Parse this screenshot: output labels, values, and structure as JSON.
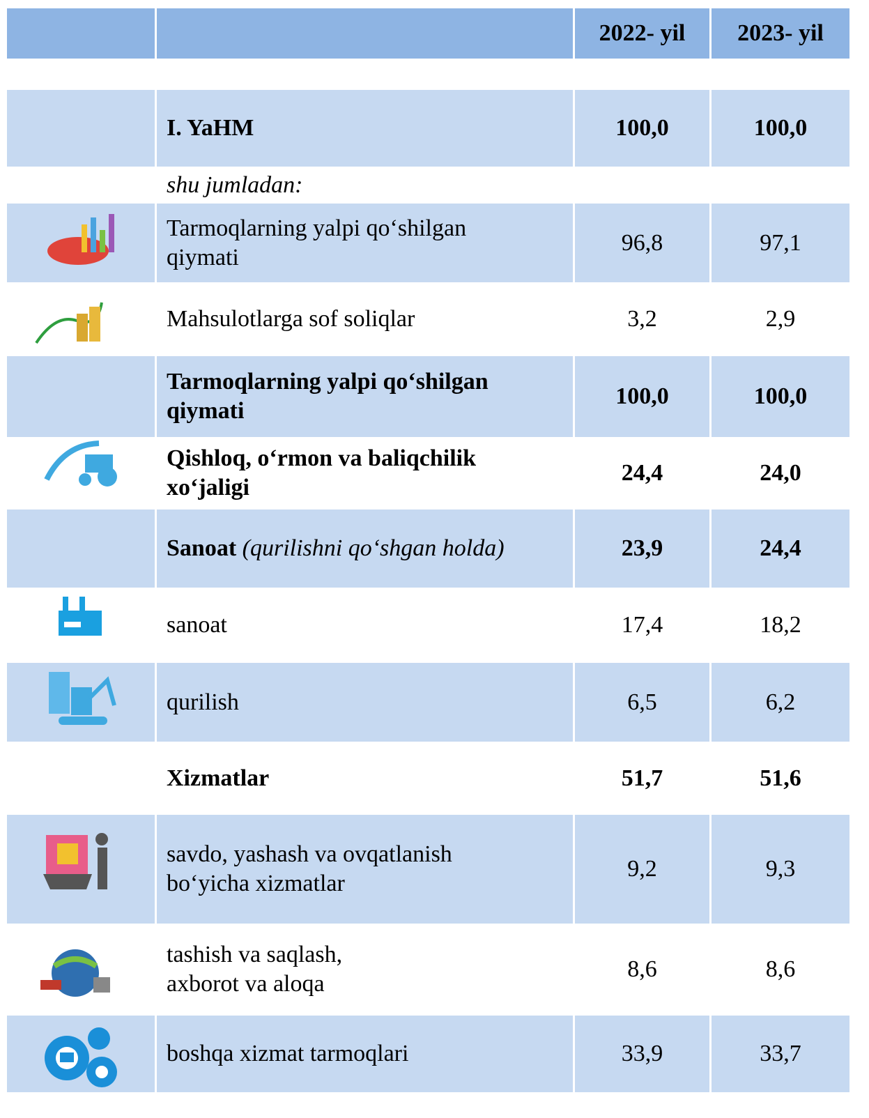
{
  "table": {
    "columns": [
      "2022- yil",
      "2023- yil"
    ],
    "rows": [
      {
        "label": [
          "I. YaHM"
        ],
        "values": [
          "100,0",
          "100,0"
        ]
      },
      {
        "label": [
          "shu jumladan:"
        ]
      },
      {
        "label": [
          "Tarmoqlarning yalpi qo‘shilgan",
          "qiymati"
        ],
        "values": [
          "96,8",
          "97,1"
        ]
      },
      {
        "label": [
          "Mahsulotlarga sof soliqlar"
        ],
        "values": [
          "3,2",
          "2,9"
        ]
      },
      {
        "label": [
          "Tarmoqlarning yalpi qo‘shilgan",
          "qiymati"
        ],
        "values": [
          "100,0",
          "100,0"
        ]
      },
      {
        "label": [
          "Qishloq, o‘rmon va baliqchilik",
          "xo‘jaligi"
        ],
        "values": [
          "24,4",
          "24,0"
        ]
      },
      {
        "label": [
          "Sanoat"
        ],
        "note": "(qurilishni qo‘shgan holda)",
        "values": [
          "23,9",
          "24,4"
        ]
      },
      {
        "label": [
          "sanoat"
        ],
        "values": [
          "17,4",
          "18,2"
        ]
      },
      {
        "label": [
          "qurilish"
        ],
        "values": [
          "6,5",
          "6,2"
        ]
      },
      {
        "label": [
          "Xizmatlar"
        ],
        "values": [
          "51,7",
          "51,6"
        ]
      },
      {
        "label": [
          "savdo, yashash va ovqatlanish",
          "bo‘yicha xizmatlar"
        ],
        "values": [
          "9,2",
          "9,3"
        ]
      },
      {
        "label": [
          "tashish va saqlash,",
          "axborot va aloqa"
        ],
        "values": [
          "8,6",
          "8,6"
        ]
      },
      {
        "label": [
          "boshqa xizmat tarmoqlari"
        ],
        "values": [
          "33,9",
          "33,7"
        ]
      }
    ]
  }
}
